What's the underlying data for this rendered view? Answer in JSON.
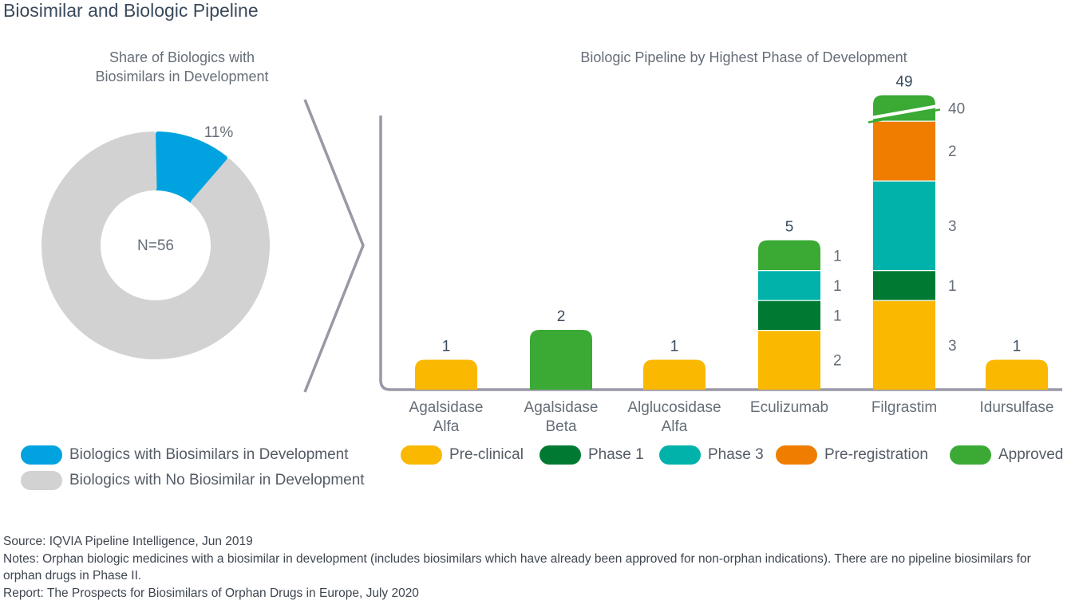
{
  "page": {
    "title": "Biosimilar and Biologic Pipeline"
  },
  "donut": {
    "title_line1": "Share of Biologics with",
    "title_line2": "Biosimilars in Development",
    "center_label": "N=56",
    "segment_label": "11%"
  },
  "bars": {
    "title": "Biologic Pipeline by Highest Phase of Development"
  },
  "legend": {
    "items": [
      {
        "label": "Biologics with Biosimilars in Development",
        "color": "#00a3e0"
      },
      {
        "label": "Biologics with No Biosimilar in Development",
        "color": "#d2d2d2"
      },
      {
        "label": "Pre-clinical",
        "color": "#fab800"
      },
      {
        "label": "Phase 1",
        "color": "#007a33"
      },
      {
        "label": "Phase 3",
        "color": "#00b2a9"
      },
      {
        "label": "Pre-registration",
        "color": "#ee7d00"
      },
      {
        "label": "Approved",
        "color": "#3aaa35"
      }
    ]
  },
  "footnotes": {
    "source": "Source: IQVIA Pipeline Intelligence, Jun 2019",
    "notes": "Notes: Orphan biologic medicines with a biosimilar in development (includes biosimilars which have already been approved for non-orphan indications). There are no pipeline biosimilars for orphan drugs in Phase II.",
    "report": "Report: The Prospects for Biosimilars of Orphan Drugs in Europe, July 2020"
  },
  "chart_data": [
    {
      "type": "pie",
      "variant": "donut",
      "title": "Share of Biologics with Biosimilars in Development",
      "center_label": "N=56",
      "slices": [
        {
          "name": "Biologics with Biosimilars in Development",
          "value": 11,
          "label": "11%",
          "color": "#00a3e0"
        },
        {
          "name": "Biologics with No Biosimilar in Development",
          "value": 89,
          "color": "#d2d2d2"
        }
      ]
    },
    {
      "type": "bar",
      "stacked": true,
      "title": "Biologic Pipeline by Highest Phase of Development",
      "categories": [
        "Agalsidase Alfa",
        "Agalsidase Beta",
        "Alglucosidase Alfa",
        "Eculizumab",
        "Filgrastim",
        "Idursulfase"
      ],
      "category_lines": [
        [
          "Agalsidase",
          "Alfa"
        ],
        [
          "Agalsidase",
          "Beta"
        ],
        [
          "Alglucosidase",
          "Alfa"
        ],
        [
          "Eculizumab"
        ],
        [
          "Filgrastim"
        ],
        [
          "Idursulfase"
        ]
      ],
      "series": [
        {
          "name": "Pre-clinical",
          "color": "#fab800",
          "values": [
            1,
            0,
            1,
            2,
            3,
            1
          ]
        },
        {
          "name": "Phase 1",
          "color": "#007a33",
          "values": [
            0,
            0,
            0,
            1,
            1,
            0
          ]
        },
        {
          "name": "Phase 3",
          "color": "#00b2a9",
          "values": [
            0,
            0,
            0,
            1,
            3,
            0
          ]
        },
        {
          "name": "Pre-registration",
          "color": "#ee7d00",
          "values": [
            0,
            0,
            0,
            0,
            2,
            0
          ]
        },
        {
          "name": "Approved",
          "color": "#3aaa35",
          "values": [
            0,
            2,
            0,
            1,
            40,
            0
          ]
        }
      ],
      "totals": [
        1,
        2,
        1,
        5,
        49,
        1
      ],
      "axis_break": {
        "category": "Filgrastim",
        "series": "Approved"
      },
      "legend": "bottom",
      "grid": false
    }
  ]
}
